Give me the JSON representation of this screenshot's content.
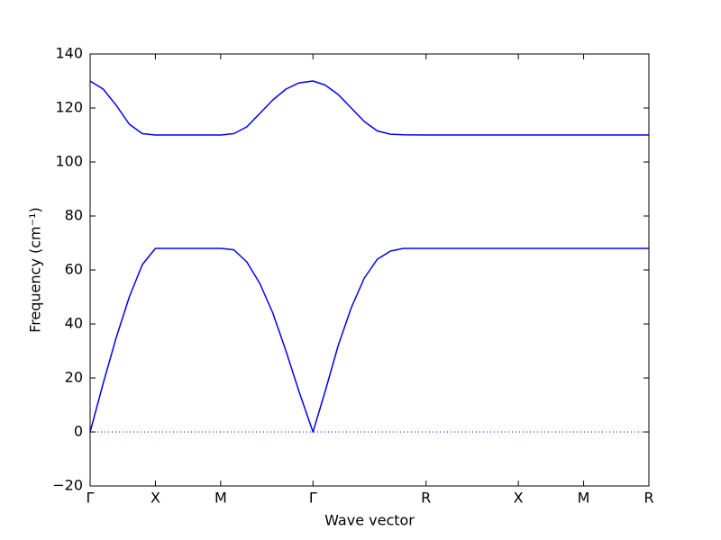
{
  "chart_data": {
    "type": "line",
    "x_label": "Wave vector",
    "y_label": "Frequency (cm⁻¹)",
    "x": [
      0,
      0.1,
      0.2,
      0.3,
      0.4,
      0.5,
      1.0,
      1.1,
      1.2,
      1.3,
      1.4,
      1.5,
      1.6,
      1.707,
      1.8,
      1.9,
      2.0,
      2.1,
      2.2,
      2.3,
      2.4,
      2.573,
      3.28,
      3.78,
      4.28
    ],
    "series": [
      {
        "color": "#0000ff",
        "values": [
          130,
          127,
          121,
          114,
          110.5,
          110,
          110,
          110.5,
          113,
          118,
          123,
          127,
          129.3,
          130,
          128.5,
          125,
          120,
          115,
          111.5,
          110.3,
          110.1,
          110,
          110,
          110,
          110
        ]
      },
      {
        "color": "#0000ff",
        "values": [
          0,
          18,
          35,
          50,
          62,
          68,
          68,
          67.5,
          63,
          55,
          44,
          30,
          15,
          0,
          15,
          32,
          46,
          57,
          64,
          67,
          68,
          68,
          68,
          68,
          68
        ]
      }
    ],
    "xlim": [
      0,
      4.28
    ],
    "xticks": [
      {
        "value": 0,
        "label": "Γ"
      },
      {
        "value": 0.5,
        "label": "X"
      },
      {
        "value": 1.0,
        "label": "M"
      },
      {
        "value": 1.707,
        "label": "Γ"
      },
      {
        "value": 2.573,
        "label": "R"
      },
      {
        "value": 3.28,
        "label": "X"
      },
      {
        "value": 3.78,
        "label": "M"
      },
      {
        "value": 4.28,
        "label": "R"
      }
    ],
    "ylim": [
      -20,
      140
    ],
    "yticks": [
      {
        "value": -20,
        "label": "−20"
      },
      0,
      20,
      40,
      60,
      80,
      100,
      120,
      140
    ],
    "zero_line": true,
    "zero_line_color": "#0000ff"
  }
}
